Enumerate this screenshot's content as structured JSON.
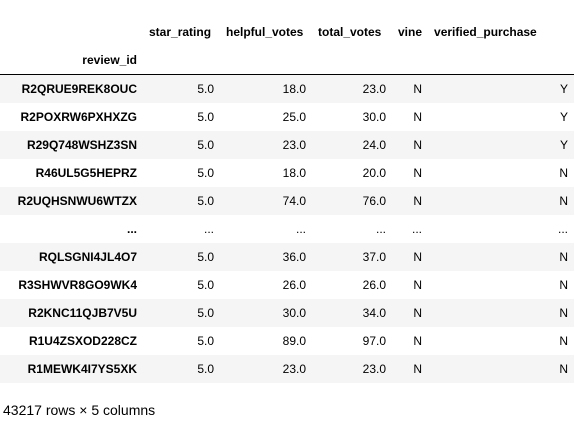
{
  "table": {
    "index_name": "review_id",
    "columns": [
      "star_rating",
      "helpful_votes",
      "total_votes",
      "vine",
      "verified_purchase"
    ],
    "rows": [
      {
        "id": "R2QRUE9REK8OUC",
        "cells": [
          "5.0",
          "18.0",
          "23.0",
          "N",
          "Y"
        ]
      },
      {
        "id": "R2POXRW6PXHXZG",
        "cells": [
          "5.0",
          "25.0",
          "30.0",
          "N",
          "Y"
        ]
      },
      {
        "id": "R29Q748WSHZ3SN",
        "cells": [
          "5.0",
          "23.0",
          "24.0",
          "N",
          "Y"
        ]
      },
      {
        "id": "R46UL5G5HEPRZ",
        "cells": [
          "5.0",
          "18.0",
          "20.0",
          "N",
          "N"
        ]
      },
      {
        "id": "R2UQHSNWU6WTZX",
        "cells": [
          "5.0",
          "74.0",
          "76.0",
          "N",
          "N"
        ]
      },
      {
        "id": "...",
        "cells": [
          "...",
          "...",
          "...",
          "...",
          "..."
        ]
      },
      {
        "id": "RQLSGNI4JL4O7",
        "cells": [
          "5.0",
          "36.0",
          "37.0",
          "N",
          "N"
        ]
      },
      {
        "id": "R3SHWVR8GO9WK4",
        "cells": [
          "5.0",
          "26.0",
          "26.0",
          "N",
          "N"
        ]
      },
      {
        "id": "R2KNC11QJB7V5U",
        "cells": [
          "5.0",
          "30.0",
          "34.0",
          "N",
          "N"
        ]
      },
      {
        "id": "R1U4ZSXOD228CZ",
        "cells": [
          "5.0",
          "89.0",
          "97.0",
          "N",
          "N"
        ]
      },
      {
        "id": "R1MEWK4I7YS5XK",
        "cells": [
          "5.0",
          "23.0",
          "23.0",
          "N",
          "N"
        ]
      }
    ]
  },
  "shape_text": "43217 rows × 5 columns"
}
